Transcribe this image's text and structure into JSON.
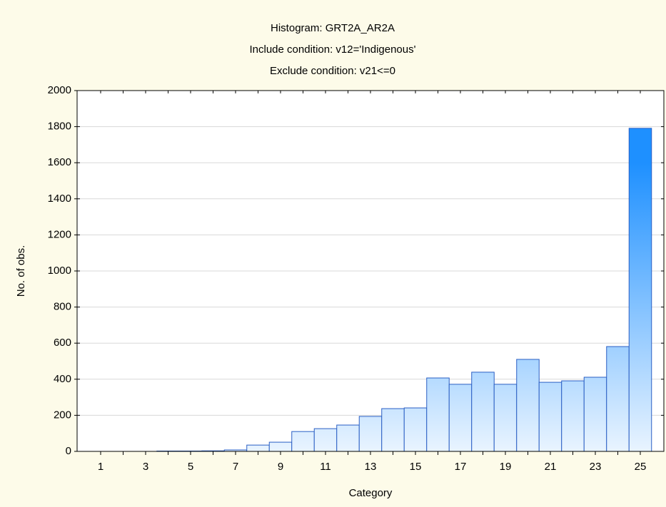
{
  "chart_data": {
    "type": "bar",
    "title": "Histogram: GRT2A_AR2A",
    "subtitle": "Include condition: v12='Indigenous'",
    "subtitle2": "Exclude condition: v21<=0",
    "xlabel": "Category",
    "ylabel": "No. of obs.",
    "categories": [
      1,
      null,
      3,
      null,
      5,
      null,
      7,
      null,
      9,
      null,
      11,
      null,
      13,
      null,
      15,
      null,
      17,
      null,
      19,
      null,
      21,
      null,
      23,
      null,
      25
    ],
    "values": [
      0,
      0,
      0,
      2,
      2,
      3,
      8,
      35,
      51,
      110,
      126,
      146,
      194,
      237,
      241,
      407,
      372,
      439,
      372,
      510,
      383,
      391,
      411,
      581,
      1791
    ],
    "color": "#1e90ff",
    "ylim": [
      0,
      2000
    ],
    "yticks": [
      0,
      200,
      400,
      600,
      800,
      1000,
      1200,
      1400,
      1600,
      1800,
      2000
    ],
    "grid": true
  }
}
